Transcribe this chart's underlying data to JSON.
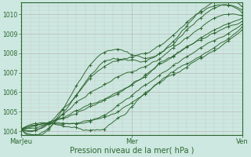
{
  "xlabel": "Pression niveau de la mer( hPa )",
  "ylim": [
    1003.8,
    1010.6
  ],
  "xlim": [
    0,
    96
  ],
  "yticks": [
    1004,
    1005,
    1006,
    1007,
    1008,
    1009,
    1010
  ],
  "xtick_positions": [
    0,
    48,
    96
  ],
  "xtick_labels": [
    "MarJeu",
    "Mer",
    "Ven"
  ],
  "background_color": "#cce8e0",
  "grid_color_minor": "#c8b4bc",
  "grid_color_major": "#b8a0aa",
  "line_color": "#2d6630",
  "num_lines": 9,
  "hours": 96,
  "seed": 7
}
